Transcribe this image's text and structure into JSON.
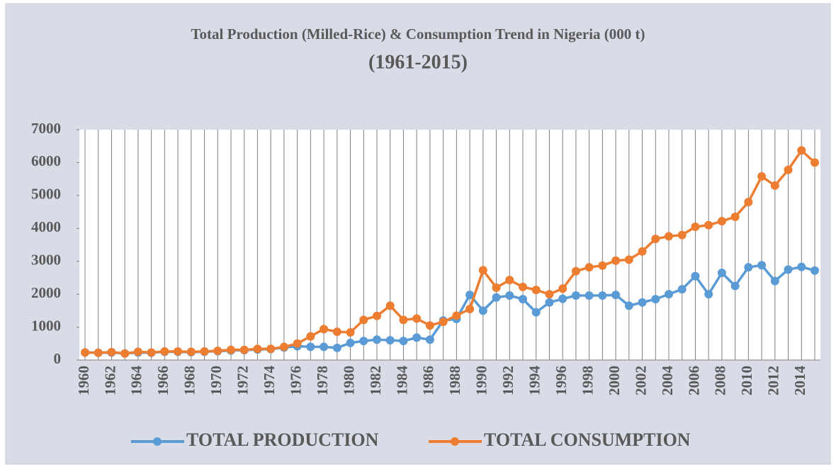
{
  "chart_data": {
    "type": "line",
    "title": "Total Production (Milled-Rice) & Consumption Trend in Nigeria (000 t)",
    "subtitle": "(1961-2015)",
    "x": [
      1960,
      1961,
      1962,
      1963,
      1964,
      1965,
      1966,
      1967,
      1968,
      1969,
      1970,
      1971,
      1972,
      1973,
      1974,
      1975,
      1976,
      1977,
      1978,
      1979,
      1980,
      1981,
      1982,
      1983,
      1984,
      1985,
      1986,
      1987,
      1988,
      1989,
      1990,
      1991,
      1992,
      1993,
      1994,
      1995,
      1996,
      1997,
      1998,
      1999,
      2000,
      2001,
      2002,
      2003,
      2004,
      2005,
      2006,
      2007,
      2008,
      2009,
      2010,
      2011,
      2012,
      2013,
      2014,
      2015
    ],
    "xlim": [
      1960,
      2015
    ],
    "xticks": [
      1960,
      1962,
      1964,
      1966,
      1968,
      1970,
      1972,
      1974,
      1976,
      1978,
      1980,
      1982,
      1984,
      1986,
      1988,
      1990,
      1992,
      1994,
      1996,
      1998,
      2000,
      2002,
      2004,
      2006,
      2008,
      2010,
      2012,
      2014
    ],
    "ylim": [
      0,
      7000
    ],
    "yticks": [
      0,
      1000,
      2000,
      3000,
      4000,
      5000,
      6000,
      7000
    ],
    "grid": true,
    "legend": "bottom",
    "series": [
      {
        "name": "TOTAL PRODUCTION",
        "color": "#5b9bd5",
        "values": [
          230,
          220,
          230,
          200,
          230,
          220,
          250,
          250,
          240,
          250,
          270,
          290,
          300,
          320,
          330,
          380,
          420,
          400,
          400,
          370,
          520,
          580,
          620,
          600,
          580,
          680,
          620,
          1200,
          1250,
          1980,
          1500,
          1900,
          1960,
          1850,
          1450,
          1750,
          1860,
          1960,
          1960,
          1960,
          1980,
          1650,
          1750,
          1850,
          2000,
          2150,
          2550,
          2000,
          2650,
          2250,
          2820,
          2880,
          2400,
          2750,
          2830,
          2720
        ]
      },
      {
        "name": "TOTAL CONSUMPTION",
        "color": "#ed7d31",
        "values": [
          230,
          220,
          240,
          200,
          250,
          230,
          260,
          260,
          250,
          260,
          280,
          310,
          310,
          340,
          340,
          400,
          500,
          720,
          940,
          860,
          840,
          1220,
          1340,
          1650,
          1220,
          1260,
          1050,
          1160,
          1350,
          1550,
          2730,
          2200,
          2430,
          2220,
          2130,
          2000,
          2170,
          2700,
          2820,
          2870,
          3020,
          3050,
          3300,
          3680,
          3760,
          3800,
          4050,
          4100,
          4220,
          4350,
          4800,
          5580,
          5300,
          5780,
          6370,
          6000
        ]
      }
    ]
  }
}
